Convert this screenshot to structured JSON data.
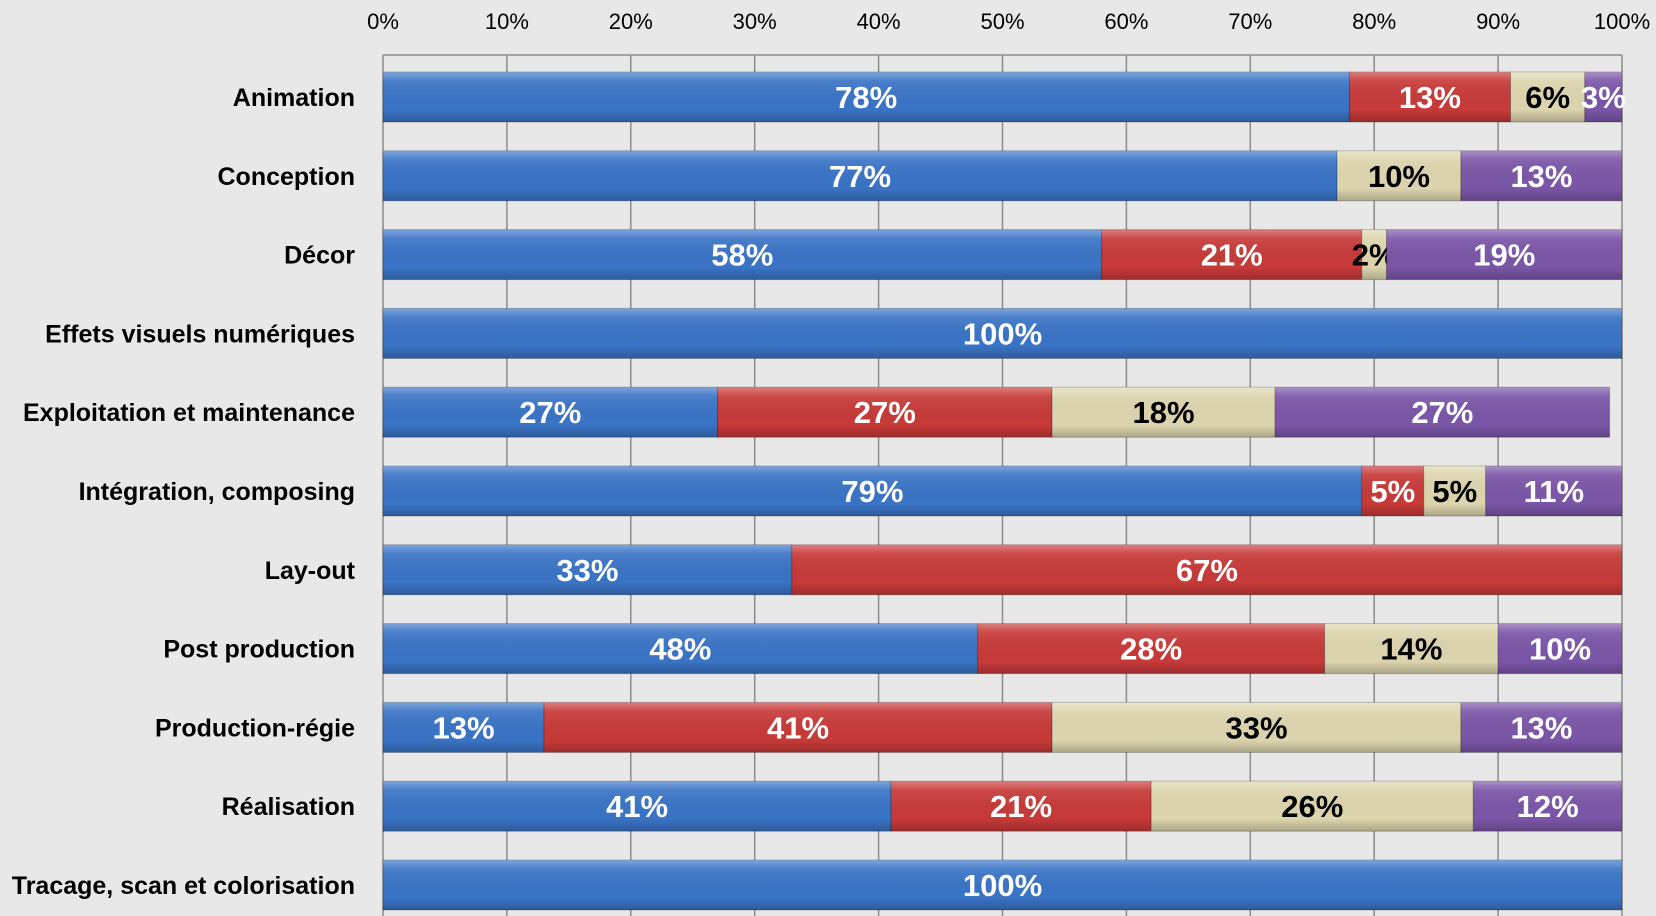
{
  "chart_data": {
    "type": "bar",
    "orientation": "horizontal",
    "stacked": "percent",
    "title": "",
    "xlabel": "",
    "ylabel": "",
    "xlim": [
      0,
      100
    ],
    "x_ticks": [
      "0%",
      "10%",
      "20%",
      "30%",
      "40%",
      "50%",
      "60%",
      "70%",
      "80%",
      "90%",
      "100%"
    ],
    "grid": true,
    "legend": "none",
    "categories": [
      "Animation",
      "Conception",
      "Décor",
      "Effets visuels numériques",
      "Exploitation et maintenance",
      "Intégration, composing",
      "Lay-out",
      "Post production",
      "Production-régie",
      "Réalisation",
      "Tracage, scan et colorisation"
    ],
    "series": [
      {
        "color": "#3a74c6",
        "label_color": "#ffffff",
        "values": [
          78,
          77,
          58,
          100,
          27,
          79,
          33,
          48,
          13,
          41,
          100
        ]
      },
      {
        "color": "#c73a38",
        "label_color": "#ffffff",
        "values": [
          13,
          0,
          21,
          0,
          27,
          5,
          67,
          28,
          41,
          21,
          0
        ]
      },
      {
        "color": "#ddd5ae",
        "label_color": "#000000",
        "values": [
          6,
          10,
          2,
          0,
          18,
          5,
          0,
          14,
          33,
          26,
          0
        ]
      },
      {
        "color": "#7b56a8",
        "label_color": "#ffffff",
        "values": [
          3,
          13,
          19,
          0,
          27,
          11,
          0,
          10,
          13,
          12,
          0
        ]
      }
    ]
  }
}
